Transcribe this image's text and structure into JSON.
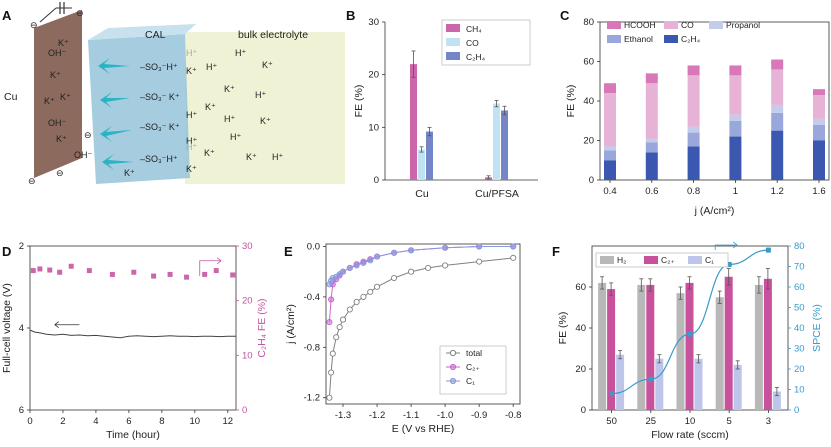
{
  "colors": {
    "ch4": "#cc66aa",
    "co": "#bfe3f3",
    "c2h4": "#7485c8",
    "hcooh": "#d978b8",
    "co_c": "#e6b3d6",
    "propanol": "#c4cceb",
    "ethanol": "#9aa7da",
    "c2h4_c": "#3b58b0",
    "h2": "#b8b8b8",
    "c2p": "#c8519b",
    "c1": "#bdc6ea",
    "spce": "#3b9ac9",
    "total": "#808080",
    "c2p_e": "#cc66cc",
    "c1_e": "#8899dd",
    "cu": "#8c6a5d",
    "cal": "#9cc6dc",
    "bulk": "#f0f2d6"
  },
  "panels": {
    "a": {
      "label": "A",
      "cu_label": "Cu",
      "cal_label": "CAL",
      "bulk_label": "bulk electrolyte",
      "cu_ions": [
        "K⁺",
        "OH⁻",
        "K⁺",
        "K⁺",
        "K⁺",
        "OH⁻",
        "K⁺",
        "OH⁻"
      ],
      "cal_ions": [
        "–SO₃⁻H⁺",
        "K⁺",
        "–SO₃⁻ K⁺",
        "–SO₃⁻ K⁺",
        "–SO₃⁻H⁺",
        "K⁺",
        "K⁺",
        "H⁺",
        "H⁺"
      ],
      "bulk_ions": [
        "H⁺",
        "H⁺",
        "K⁺",
        "K⁺",
        "H⁺",
        "K⁺",
        "H⁺",
        "K⁺",
        "H⁺",
        "K⁺",
        "K⁺",
        "H⁺"
      ],
      "faded_ions": [
        "H⁺",
        "H⁺"
      ],
      "electrode_signs": [
        "⊖",
        "⊖",
        "⊖",
        "⊖",
        "⊖"
      ]
    },
    "b": {
      "label": "B"
    },
    "c": {
      "label": "C"
    },
    "d": {
      "label": "D"
    },
    "e": {
      "label": "E"
    },
    "f": {
      "label": "F"
    }
  },
  "chart_data": [
    {
      "id": "B",
      "type": "bar",
      "ylabel": "FE (%)",
      "ylim": [
        0,
        30
      ],
      "yticks": [
        "0",
        "10",
        "20",
        "30"
      ],
      "categories": [
        "Cu",
        "Cu/PFSA"
      ],
      "series": [
        {
          "name": "CH₄",
          "values": [
            22.0,
            0.5
          ],
          "errors": [
            2.5,
            0.3
          ]
        },
        {
          "name": "CO",
          "values": [
            5.8,
            14.5
          ],
          "errors": [
            0.5,
            0.6
          ]
        },
        {
          "name": "C₂H₄",
          "values": [
            9.2,
            13.2
          ],
          "errors": [
            0.8,
            0.8
          ]
        }
      ],
      "legend": "top-right"
    },
    {
      "id": "C",
      "type": "bar",
      "stacked": true,
      "xlabel": "j (A/cm²)",
      "ylabel": "FE (%)",
      "ylim": [
        0,
        80
      ],
      "yticks": [
        "0",
        "20",
        "40",
        "60",
        "80"
      ],
      "categories": [
        "0.4",
        "0.6",
        "0.8",
        "1",
        "1.2",
        "1.6"
      ],
      "series": [
        {
          "name": "C₂H₄",
          "values": [
            10,
            14,
            17,
            22,
            25,
            20
          ]
        },
        {
          "name": "Ethanol",
          "values": [
            5,
            5,
            7,
            8,
            9,
            8
          ]
        },
        {
          "name": "Propanol",
          "values": [
            2,
            2,
            3,
            3,
            4,
            3
          ]
        },
        {
          "name": "CO",
          "values": [
            27,
            28,
            26,
            20,
            18,
            12
          ]
        },
        {
          "name": "HCOOH",
          "values": [
            5,
            5,
            5,
            5,
            5,
            3
          ]
        }
      ],
      "legend": "top"
    },
    {
      "id": "D",
      "type": "scatter",
      "xlabel": "Time (hour)",
      "ylabel": "Full-cell voltage (V)",
      "ylabel_right": "C₂H₄ FE (%)",
      "xlim": [
        0,
        12.5
      ],
      "xticks": [
        "0",
        "2",
        "4",
        "6",
        "8",
        "10",
        "12"
      ],
      "ylim_left": [
        6,
        2
      ],
      "yticks_left": [
        "2",
        "4",
        "6"
      ],
      "ylim_right": [
        0,
        30
      ],
      "yticks_right": [
        "0",
        "10",
        "20",
        "30"
      ],
      "voltage_series": {
        "name": "Full-cell voltage",
        "x": [
          0,
          0.3,
          0.6,
          1,
          1.5,
          2,
          2.5,
          3,
          3.5,
          4,
          4.5,
          5,
          5.5,
          6,
          6.5,
          7,
          7.5,
          8,
          8.5,
          9,
          9.5,
          10,
          10.5,
          11,
          11.5,
          12,
          12.5
        ],
        "y": [
          4.05,
          4.1,
          4.12,
          4.15,
          4.17,
          4.15,
          4.18,
          4.17,
          4.19,
          4.18,
          4.2,
          4.22,
          4.24,
          4.2,
          4.19,
          4.2,
          4.21,
          4.2,
          4.19,
          4.2,
          4.2,
          4.21,
          4.2,
          4.2,
          4.21,
          4.2,
          4.2
        ]
      },
      "fe_series": {
        "name": "C₂H₄ FE",
        "x": [
          0.2,
          0.6,
          1.2,
          1.8,
          2.5,
          3.6,
          5,
          6.3,
          7.5,
          8.5,
          9.5,
          10.6,
          11.3,
          12.3
        ],
        "y": [
          25.5,
          25.8,
          25.6,
          25.2,
          26.3,
          25.5,
          24.8,
          25.2,
          24.5,
          24.8,
          24.3,
          24.8,
          25.5,
          24.7
        ]
      }
    },
    {
      "id": "E",
      "type": "line",
      "xlabel": "E (V vs RHE)",
      "ylabel": "j (A/cm²)",
      "xlim": [
        -1.35,
        -0.78
      ],
      "xticks": [
        "-1.3",
        "-1.2",
        "-1.1",
        "-1.0",
        "-0.9",
        "-0.8"
      ],
      "ylim": [
        -1.25,
        0.02
      ],
      "yticks": [
        "-1.2",
        "-0.8",
        "-0.4",
        "0.0"
      ],
      "series": [
        {
          "name": "total",
          "x": [
            -1.34,
            -1.335,
            -1.33,
            -1.32,
            -1.31,
            -1.3,
            -1.28,
            -1.26,
            -1.24,
            -1.22,
            -1.2,
            -1.15,
            -1.1,
            -1.05,
            -1.0,
            -0.9,
            -0.8
          ],
          "y": [
            -1.2,
            -1.0,
            -0.85,
            -0.72,
            -0.64,
            -0.58,
            -0.5,
            -0.44,
            -0.4,
            -0.36,
            -0.32,
            -0.25,
            -0.2,
            -0.17,
            -0.15,
            -0.12,
            -0.09
          ]
        },
        {
          "name": "C₂₊",
          "x": [
            -1.34,
            -1.335,
            -1.33,
            -1.32,
            -1.31,
            -1.3,
            -1.28,
            -1.26,
            -1.24,
            -1.22,
            -1.2,
            -1.15,
            -1.1,
            -1.0,
            -0.9,
            -0.8
          ],
          "y": [
            -0.6,
            -0.42,
            -0.3,
            -0.26,
            -0.23,
            -0.2,
            -0.17,
            -0.14,
            -0.12,
            -0.1,
            -0.08,
            -0.05,
            -0.03,
            -0.01,
            0.0,
            0.0
          ]
        },
        {
          "name": "C₁",
          "x": [
            -1.34,
            -1.335,
            -1.33,
            -1.32,
            -1.31,
            -1.3,
            -1.28,
            -1.26,
            -1.24,
            -1.22,
            -1.2,
            -1.15,
            -1.1,
            -1.0,
            -0.9,
            -0.8
          ],
          "y": [
            -0.3,
            -0.27,
            -0.25,
            -0.24,
            -0.22,
            -0.2,
            -0.17,
            -0.15,
            -0.13,
            -0.11,
            -0.08,
            -0.05,
            -0.03,
            -0.01,
            0.0,
            0.0
          ]
        }
      ],
      "legend": "bottom-right"
    },
    {
      "id": "F",
      "type": "bar",
      "xlabel": "Flow rate (sccm)",
      "ylabel": "FE (%)",
      "ylabel_right": "SPCE (%)",
      "ylim": [
        0,
        80
      ],
      "yticks": [
        "0",
        "20",
        "40",
        "60"
      ],
      "ylim_right": [
        0,
        80
      ],
      "yticks_right": [
        "0",
        "10",
        "20",
        "30",
        "40",
        "50",
        "60",
        "70",
        "80"
      ],
      "categories": [
        "50",
        "25",
        "10",
        "5",
        "3"
      ],
      "series": [
        {
          "name": "H₂",
          "values": [
            62,
            61,
            57,
            55,
            61
          ],
          "errors": [
            3,
            3,
            3,
            3,
            4
          ]
        },
        {
          "name": "C₂₊",
          "values": [
            59,
            61,
            62,
            65,
            64
          ],
          "errors": [
            3,
            3,
            3,
            4,
            5
          ]
        },
        {
          "name": "C₁",
          "values": [
            27,
            25,
            25,
            22,
            9
          ],
          "errors": [
            2,
            2,
            2,
            2,
            2
          ]
        }
      ],
      "spce_series": {
        "name": "SPCE",
        "values": [
          8,
          15,
          37,
          71,
          78
        ]
      },
      "legend": "top-left"
    }
  ]
}
